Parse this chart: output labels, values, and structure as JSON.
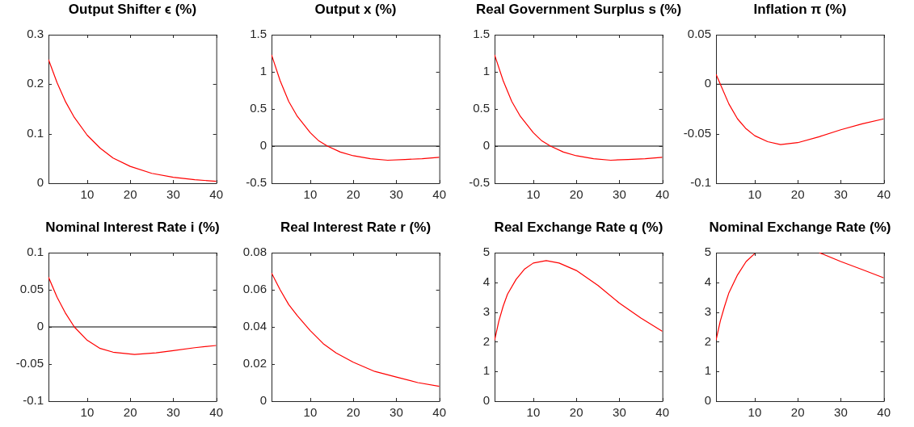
{
  "chart_data": [
    {
      "type": "line",
      "title": "Output Shifter ϵ (%)",
      "x": [
        1,
        3,
        5,
        7,
        10,
        13,
        16,
        20,
        25,
        30,
        35,
        40
      ],
      "xlim": [
        1,
        40
      ],
      "xticks": [
        10,
        20,
        30,
        40
      ],
      "ylim": [
        0,
        0.3
      ],
      "yticks": [
        0,
        0.1,
        0.2,
        0.3
      ],
      "series": [
        {
          "color": "#ff0000",
          "values": [
            0.25,
            0.203,
            0.164,
            0.133,
            0.097,
            0.071,
            0.051,
            0.034,
            0.02,
            0.012,
            0.007,
            0.004
          ]
        }
      ]
    },
    {
      "type": "line",
      "title": "Output x (%)",
      "x": [
        1,
        3,
        5,
        7,
        10,
        12,
        14,
        17,
        20,
        24,
        28,
        32,
        36,
        40
      ],
      "xlim": [
        1,
        40
      ],
      "xticks": [
        10,
        20,
        30,
        40
      ],
      "ylim": [
        -0.5,
        1.5
      ],
      "yticks": [
        -0.5,
        0,
        0.5,
        1,
        1.5
      ],
      "ref_lines": [
        {
          "axis": "y",
          "value": 0,
          "color": "#000000"
        }
      ],
      "series": [
        {
          "color": "#ff0000",
          "values": [
            1.23,
            0.88,
            0.6,
            0.4,
            0.18,
            0.07,
            0.0,
            -0.08,
            -0.13,
            -0.17,
            -0.19,
            -0.18,
            -0.17,
            -0.15
          ]
        }
      ]
    },
    {
      "type": "line",
      "title": "Real Government Surplus s (%)",
      "x": [
        1,
        3,
        5,
        7,
        10,
        12,
        14,
        17,
        20,
        24,
        28,
        32,
        36,
        40
      ],
      "xlim": [
        1,
        40
      ],
      "xticks": [
        10,
        20,
        30,
        40
      ],
      "ylim": [
        -0.5,
        1.5
      ],
      "yticks": [
        -0.5,
        0,
        0.5,
        1,
        1.5
      ],
      "ref_lines": [
        {
          "axis": "y",
          "value": 0,
          "color": "#000000"
        }
      ],
      "series": [
        {
          "color": "#ff0000",
          "values": [
            1.23,
            0.88,
            0.6,
            0.4,
            0.18,
            0.07,
            0.0,
            -0.08,
            -0.13,
            -0.17,
            -0.19,
            -0.18,
            -0.17,
            -0.15
          ]
        }
      ]
    },
    {
      "type": "line",
      "title": "Inflation π (%)",
      "x": [
        1,
        2,
        4,
        6,
        8,
        10,
        13,
        16,
        20,
        25,
        30,
        35,
        40
      ],
      "xlim": [
        1,
        40
      ],
      "xticks": [
        10,
        20,
        30,
        40
      ],
      "ylim": [
        -0.1,
        0.05
      ],
      "yticks": [
        -0.1,
        -0.05,
        0,
        0.05
      ],
      "ref_lines": [
        {
          "axis": "y",
          "value": 0,
          "color": "#000000"
        }
      ],
      "series": [
        {
          "color": "#ff0000",
          "values": [
            0.01,
            0.0,
            -0.02,
            -0.035,
            -0.045,
            -0.052,
            -0.058,
            -0.061,
            -0.059,
            -0.053,
            -0.046,
            -0.04,
            -0.035
          ]
        }
      ]
    },
    {
      "type": "line",
      "title": "Nominal Interest Rate i (%)",
      "x": [
        1,
        3,
        5,
        7,
        10,
        13,
        16,
        21,
        26,
        30,
        35,
        40
      ],
      "xlim": [
        1,
        40
      ],
      "xticks": [
        10,
        20,
        30,
        40
      ],
      "ylim": [
        -0.1,
        0.1
      ],
      "yticks": [
        -0.1,
        -0.05,
        0,
        0.05,
        0.1
      ],
      "ref_lines": [
        {
          "axis": "y",
          "value": 0,
          "color": "#000000"
        }
      ],
      "series": [
        {
          "color": "#ff0000",
          "values": [
            0.067,
            0.04,
            0.018,
            0.0,
            -0.018,
            -0.029,
            -0.034,
            -0.037,
            -0.035,
            -0.032,
            -0.028,
            -0.025
          ]
        }
      ]
    },
    {
      "type": "line",
      "title": "Real Interest Rate r (%)",
      "x": [
        1,
        3,
        5,
        7,
        10,
        13,
        16,
        20,
        25,
        30,
        35,
        40
      ],
      "xlim": [
        1,
        40
      ],
      "xticks": [
        10,
        20,
        30,
        40
      ],
      "ylim": [
        0,
        0.08
      ],
      "yticks": [
        0,
        0.02,
        0.04,
        0.06,
        0.08
      ],
      "series": [
        {
          "color": "#ff0000",
          "values": [
            0.069,
            0.06,
            0.052,
            0.046,
            0.038,
            0.031,
            0.026,
            0.021,
            0.016,
            0.013,
            0.01,
            0.008
          ]
        }
      ]
    },
    {
      "type": "line",
      "title": "Real Exchange Rate q (%)",
      "x": [
        1,
        2,
        3,
        4,
        6,
        8,
        10,
        13,
        16,
        20,
        25,
        30,
        35,
        40
      ],
      "xlim": [
        1,
        40
      ],
      "xticks": [
        10,
        20,
        30,
        40
      ],
      "ylim": [
        0,
        5
      ],
      "yticks": [
        0,
        1,
        2,
        3,
        4,
        5
      ],
      "series": [
        {
          "color": "#ff0000",
          "values": [
            2.05,
            2.7,
            3.2,
            3.6,
            4.1,
            4.45,
            4.65,
            4.73,
            4.65,
            4.4,
            3.9,
            3.3,
            2.8,
            2.35
          ]
        }
      ]
    },
    {
      "type": "line",
      "title": "Nominal Exchange Rate (%)",
      "x": [
        1,
        2,
        3,
        4,
        6,
        8,
        10,
        15,
        20,
        25,
        30,
        35,
        40
      ],
      "xlim": [
        1,
        40
      ],
      "xticks": [
        10,
        20,
        30,
        40
      ],
      "ylim": [
        0,
        5
      ],
      "yticks": [
        0,
        1,
        2,
        3,
        4,
        5
      ],
      "series": [
        {
          "color": "#ff0000",
          "values": [
            2.05,
            2.7,
            3.2,
            3.65,
            4.25,
            4.7,
            4.97,
            null,
            null,
            5.0,
            4.7,
            4.43,
            4.15
          ]
        }
      ]
    }
  ]
}
